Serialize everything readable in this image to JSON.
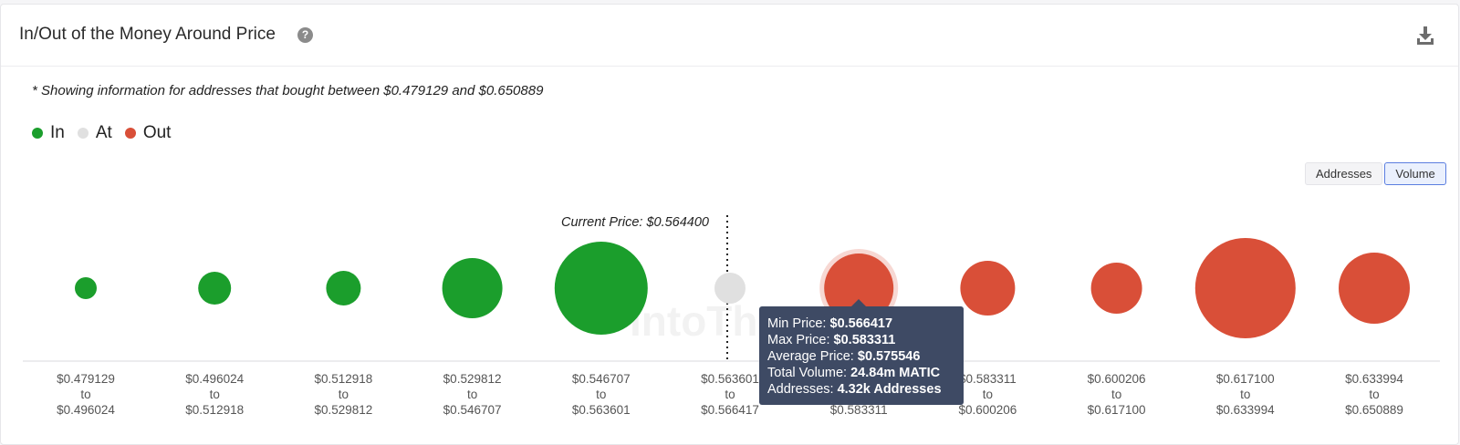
{
  "header": {
    "title": "In/Out of the Money Around Price",
    "help_icon": "question-circle-icon",
    "download_icon": "download-icon"
  },
  "note": "* Showing information for addresses that bought between $0.479129 and $0.650889",
  "legend": [
    {
      "label": "In",
      "color": "#1b9e2c"
    },
    {
      "label": "At",
      "color": "#e0e0e0"
    },
    {
      "label": "Out",
      "color": "#d94f38"
    }
  ],
  "toggle": {
    "addresses_label": "Addresses",
    "volume_label": "Volume",
    "active": "Volume"
  },
  "watermark": "IntoThe",
  "chart_data": {
    "type": "bubble",
    "current_price_label": "Current Price: $0.564400",
    "current_price": 0.5644,
    "categories": [
      {
        "from": "$0.479129",
        "to": "$0.496024",
        "status": "In",
        "size": 12
      },
      {
        "from": "$0.496024",
        "to": "$0.512918",
        "status": "In",
        "size": 18
      },
      {
        "from": "$0.512918",
        "to": "$0.529812",
        "status": "In",
        "size": 19
      },
      {
        "from": "$0.529812",
        "to": "$0.546707",
        "status": "In",
        "size": 33
      },
      {
        "from": "$0.546707",
        "to": "$0.563601",
        "status": "In",
        "size": 51
      },
      {
        "from": "$0.563601",
        "to": "$0.566417",
        "status": "At",
        "size": 17
      },
      {
        "from": "$0.566417",
        "to": "$0.583311",
        "status": "Out",
        "size": 38,
        "highlighted": true
      },
      {
        "from": "$0.583311",
        "to": "$0.600206",
        "status": "Out",
        "size": 30
      },
      {
        "from": "$0.600206",
        "to": "$0.617100",
        "status": "Out",
        "size": 28
      },
      {
        "from": "$0.617100",
        "to": "$0.633994",
        "status": "Out",
        "size": 55
      },
      {
        "from": "$0.633994",
        "to": "$0.650889",
        "status": "Out",
        "size": 39
      }
    ],
    "connector": "to",
    "tooltip": {
      "min_label": "Min Price:",
      "min_value": "$0.566417",
      "max_label": "Max Price:",
      "max_value": "$0.583311",
      "avg_label": "Average Price:",
      "avg_value": "$0.575546",
      "vol_label": "Total Volume:",
      "vol_value": "24.84m MATIC",
      "addr_label": "Addresses:",
      "addr_value": "4.32k Addresses"
    }
  }
}
